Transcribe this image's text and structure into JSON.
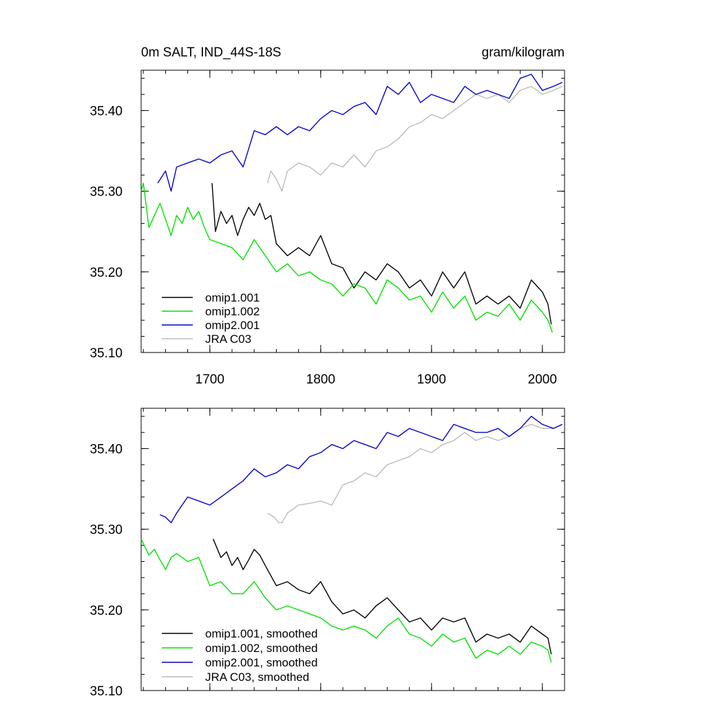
{
  "panels": [
    {
      "title_left": "0m SALT, IND_44S-18S",
      "title_right": "gram/kilogram",
      "legend": [
        "omip1.001",
        "omip1.002",
        "omip2.001",
        "JRA C03"
      ]
    },
    {
      "title_left": "",
      "title_right": "",
      "legend": [
        "omip1.001, smoothed",
        "omip1.002, smoothed",
        "omip2.001, smoothed",
        "JRA C03, smoothed"
      ]
    }
  ],
  "colors": {
    "omip1_001": "#000000",
    "omip1_002": "#00e000",
    "omip2_001": "#0000cc",
    "jra_c03": "#bbbbbb"
  },
  "chart_data": [
    {
      "type": "line",
      "title": "0m SALT, IND_44S-18S",
      "units": "gram/kilogram",
      "xlim": [
        1638,
        2020
      ],
      "ylim": [
        35.1,
        35.45
      ],
      "x_ticks": [
        1700,
        1800,
        1900,
        2000
      ],
      "x_tick_labels": [
        "1700",
        "1800",
        "1900",
        "2000"
      ],
      "y_ticks": [
        35.1,
        35.2,
        35.3,
        35.4
      ],
      "y_tick_labels": [
        "35.10",
        "35.20",
        "35.30",
        "35.40"
      ],
      "legend_position": "bottom-left",
      "series": [
        {
          "name": "omip1.001",
          "color": "#000000",
          "x": [
            1702,
            1705,
            1710,
            1715,
            1720,
            1725,
            1730,
            1735,
            1740,
            1745,
            1750,
            1755,
            1760,
            1770,
            1780,
            1790,
            1800,
            1810,
            1820,
            1830,
            1840,
            1850,
            1860,
            1870,
            1880,
            1890,
            1900,
            1910,
            1920,
            1930,
            1940,
            1950,
            1960,
            1970,
            1980,
            1990,
            2000,
            2005,
            2008
          ],
          "y": [
            35.31,
            35.25,
            35.275,
            35.26,
            35.27,
            35.245,
            35.265,
            35.28,
            35.27,
            35.285,
            35.265,
            35.27,
            35.235,
            35.22,
            35.23,
            35.22,
            35.245,
            35.21,
            35.205,
            35.18,
            35.2,
            35.19,
            35.21,
            35.2,
            35.18,
            35.19,
            35.17,
            35.2,
            35.18,
            35.2,
            35.16,
            35.17,
            35.16,
            35.17,
            35.155,
            35.19,
            35.175,
            35.16,
            35.135
          ]
        },
        {
          "name": "omip1.002",
          "color": "#00e000",
          "x": [
            1638,
            1640,
            1645,
            1650,
            1655,
            1660,
            1665,
            1670,
            1675,
            1680,
            1685,
            1690,
            1695,
            1700,
            1710,
            1720,
            1730,
            1740,
            1750,
            1760,
            1770,
            1780,
            1790,
            1800,
            1810,
            1820,
            1830,
            1840,
            1850,
            1860,
            1870,
            1880,
            1890,
            1900,
            1910,
            1920,
            1930,
            1940,
            1950,
            1960,
            1970,
            1980,
            1990,
            2000,
            2005,
            2009
          ],
          "y": [
            35.3,
            35.31,
            35.255,
            35.27,
            35.285,
            35.265,
            35.245,
            35.27,
            35.26,
            35.28,
            35.265,
            35.275,
            35.255,
            35.24,
            35.235,
            35.23,
            35.215,
            35.24,
            35.22,
            35.2,
            35.21,
            35.195,
            35.2,
            35.19,
            35.185,
            35.17,
            35.185,
            35.18,
            35.16,
            35.19,
            35.18,
            35.165,
            35.17,
            35.15,
            35.175,
            35.155,
            35.17,
            35.14,
            35.15,
            35.145,
            35.16,
            35.14,
            35.165,
            35.15,
            35.14,
            35.125
          ]
        },
        {
          "name": "omip2.001",
          "color": "#0000cc",
          "x": [
            1653,
            1660,
            1665,
            1670,
            1680,
            1690,
            1700,
            1710,
            1720,
            1730,
            1740,
            1750,
            1760,
            1770,
            1780,
            1790,
            1800,
            1810,
            1820,
            1830,
            1840,
            1850,
            1860,
            1870,
            1880,
            1890,
            1900,
            1910,
            1920,
            1930,
            1940,
            1950,
            1960,
            1970,
            1980,
            1990,
            2000,
            2010,
            2018
          ],
          "y": [
            35.31,
            35.325,
            35.3,
            35.33,
            35.335,
            35.34,
            35.335,
            35.345,
            35.35,
            35.33,
            35.375,
            35.37,
            35.38,
            35.37,
            35.38,
            35.375,
            35.39,
            35.4,
            35.395,
            35.405,
            35.41,
            35.395,
            35.43,
            35.42,
            35.435,
            35.41,
            35.42,
            35.415,
            35.41,
            35.43,
            35.42,
            35.425,
            35.42,
            35.415,
            35.44,
            35.445,
            35.425,
            35.43,
            35.435
          ]
        },
        {
          "name": "JRA C03",
          "color": "#bbbbbb",
          "x": [
            1752,
            1755,
            1760,
            1765,
            1770,
            1780,
            1790,
            1800,
            1810,
            1820,
            1830,
            1840,
            1850,
            1860,
            1870,
            1880,
            1890,
            1900,
            1910,
            1920,
            1930,
            1940,
            1950,
            1960,
            1970,
            1980,
            1990,
            2000,
            2010,
            2018
          ],
          "y": [
            35.31,
            35.325,
            35.315,
            35.3,
            35.325,
            35.335,
            35.33,
            35.32,
            35.335,
            35.33,
            35.345,
            35.33,
            35.35,
            35.355,
            35.365,
            35.38,
            35.385,
            35.395,
            35.39,
            35.4,
            35.41,
            35.42,
            35.415,
            35.42,
            35.41,
            35.425,
            35.43,
            35.42,
            35.425,
            35.43
          ]
        }
      ]
    },
    {
      "type": "line",
      "title": "",
      "units": "",
      "xlim": [
        1638,
        2020
      ],
      "ylim": [
        35.1,
        35.45
      ],
      "x_ticks": [
        1700,
        1800,
        1900,
        2000
      ],
      "x_tick_labels": [],
      "y_ticks": [
        35.1,
        35.2,
        35.3,
        35.4
      ],
      "y_tick_labels": [
        "35.10",
        "35.20",
        "35.30",
        "35.40"
      ],
      "legend_position": "bottom-left",
      "series": [
        {
          "name": "omip1.001, smoothed",
          "color": "#000000",
          "x": [
            1703,
            1710,
            1715,
            1720,
            1725,
            1730,
            1735,
            1740,
            1745,
            1750,
            1760,
            1770,
            1780,
            1790,
            1800,
            1810,
            1820,
            1830,
            1840,
            1850,
            1860,
            1870,
            1880,
            1890,
            1900,
            1910,
            1920,
            1930,
            1940,
            1950,
            1960,
            1970,
            1980,
            1990,
            2000,
            2005,
            2008
          ],
          "y": [
            35.288,
            35.265,
            35.272,
            35.255,
            35.265,
            35.25,
            35.262,
            35.275,
            35.268,
            35.255,
            35.23,
            35.235,
            35.225,
            35.22,
            35.235,
            35.21,
            35.195,
            35.2,
            35.19,
            35.205,
            35.215,
            35.2,
            35.185,
            35.19,
            35.175,
            35.19,
            35.185,
            35.19,
            35.16,
            35.17,
            35.165,
            35.17,
            35.16,
            35.18,
            35.17,
            35.165,
            35.145
          ]
        },
        {
          "name": "omip1.002, smoothed",
          "color": "#00e000",
          "x": [
            1638,
            1645,
            1650,
            1655,
            1660,
            1665,
            1670,
            1680,
            1690,
            1700,
            1710,
            1720,
            1730,
            1740,
            1750,
            1760,
            1770,
            1780,
            1790,
            1800,
            1810,
            1820,
            1830,
            1840,
            1850,
            1860,
            1870,
            1880,
            1890,
            1900,
            1910,
            1920,
            1930,
            1940,
            1950,
            1960,
            1970,
            1980,
            1990,
            2000,
            2005,
            2008
          ],
          "y": [
            35.288,
            35.268,
            35.275,
            35.262,
            35.25,
            35.265,
            35.27,
            35.26,
            35.265,
            35.23,
            35.235,
            35.22,
            35.22,
            35.235,
            35.215,
            35.2,
            35.205,
            35.2,
            35.195,
            35.19,
            35.18,
            35.175,
            35.18,
            35.175,
            35.165,
            35.18,
            35.19,
            35.17,
            35.165,
            35.155,
            35.17,
            35.16,
            35.165,
            35.14,
            35.15,
            35.145,
            35.155,
            35.145,
            35.16,
            35.155,
            35.15,
            35.135
          ]
        },
        {
          "name": "omip2.001, smoothed",
          "color": "#0000cc",
          "x": [
            1655,
            1660,
            1665,
            1670,
            1680,
            1690,
            1700,
            1710,
            1720,
            1730,
            1740,
            1750,
            1760,
            1770,
            1780,
            1790,
            1800,
            1810,
            1820,
            1830,
            1840,
            1850,
            1860,
            1870,
            1880,
            1890,
            1900,
            1910,
            1920,
            1930,
            1940,
            1950,
            1960,
            1970,
            1980,
            1990,
            2000,
            2010,
            2018
          ],
          "y": [
            35.318,
            35.315,
            35.308,
            35.32,
            35.34,
            35.335,
            35.33,
            35.34,
            35.35,
            35.36,
            35.375,
            35.365,
            35.37,
            35.38,
            35.375,
            35.39,
            35.395,
            35.405,
            35.4,
            35.41,
            35.405,
            35.4,
            35.42,
            35.415,
            35.425,
            35.42,
            35.415,
            35.41,
            35.43,
            35.425,
            35.42,
            35.42,
            35.425,
            35.415,
            35.425,
            35.44,
            35.43,
            35.425,
            35.43
          ]
        },
        {
          "name": "JRA C03, smoothed",
          "color": "#bbbbbb",
          "x": [
            1752,
            1758,
            1762,
            1765,
            1770,
            1780,
            1790,
            1800,
            1810,
            1820,
            1830,
            1840,
            1850,
            1860,
            1870,
            1880,
            1890,
            1900,
            1910,
            1920,
            1930,
            1940,
            1950,
            1960,
            1970,
            1980,
            1990,
            2000,
            2010,
            2018
          ],
          "y": [
            35.32,
            35.315,
            35.308,
            35.308,
            35.32,
            35.33,
            35.332,
            35.335,
            35.33,
            35.355,
            35.36,
            35.37,
            35.365,
            35.38,
            35.385,
            35.39,
            35.4,
            35.395,
            35.405,
            35.41,
            35.42,
            35.41,
            35.415,
            35.41,
            35.415,
            35.425,
            35.43,
            35.425,
            35.425,
            35.43
          ]
        }
      ]
    }
  ]
}
